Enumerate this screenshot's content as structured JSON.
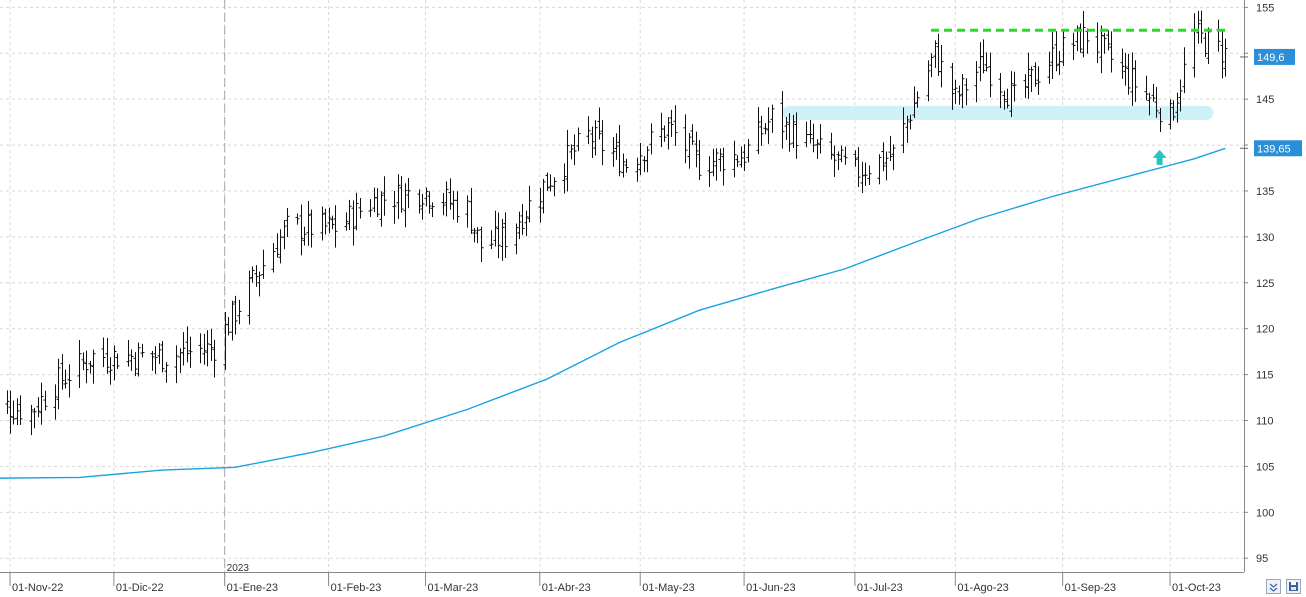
{
  "chart_data": {
    "type": "ohlc",
    "x_axis_labels": [
      {
        "date": "2022-11-01",
        "label": "01-Nov-22"
      },
      {
        "date": "2022-12-01",
        "label": "01-Dic-22"
      },
      {
        "date": "2023-01-02",
        "label": "01-Ene-23"
      },
      {
        "date": "2023-02-01",
        "label": "01-Feb-23"
      },
      {
        "date": "2023-03-01",
        "label": "01-Mar-23"
      },
      {
        "date": "2023-04-03",
        "label": "01-Abr-23"
      },
      {
        "date": "2023-05-02",
        "label": "01-May-23"
      },
      {
        "date": "2023-06-01",
        "label": "01-Jun-23"
      },
      {
        "date": "2023-07-03",
        "label": "01-Jul-23"
      },
      {
        "date": "2023-08-01",
        "label": "01-Ago-23"
      },
      {
        "date": "2023-09-01",
        "label": "01-Sep-23"
      },
      {
        "date": "2023-10-02",
        "label": "01-Oct-23"
      }
    ],
    "year_marker": {
      "date": "2023-01-02",
      "label": "2023"
    },
    "y_ticks": [
      95,
      100,
      105,
      110,
      115,
      120,
      125,
      130,
      135,
      140,
      145,
      150,
      155
    ],
    "ylim": [
      93.5,
      155.8
    ],
    "price_waypoints": [
      [
        "2022-10-25",
        112
      ],
      [
        "2022-11-07",
        111
      ],
      [
        "2022-11-14",
        114
      ],
      [
        "2022-11-25",
        117
      ],
      [
        "2022-12-16",
        117
      ],
      [
        "2022-12-30",
        118
      ],
      [
        "2023-01-13",
        127
      ],
      [
        "2023-01-20",
        131
      ],
      [
        "2023-02-03",
        131
      ],
      [
        "2023-02-14",
        134
      ],
      [
        "2023-02-28",
        135
      ],
      [
        "2023-03-13",
        133
      ],
      [
        "2023-03-17",
        129
      ],
      [
        "2023-03-24",
        130
      ],
      [
        "2023-04-05",
        136
      ],
      [
        "2023-04-17",
        141
      ],
      [
        "2023-04-28",
        138
      ],
      [
        "2023-05-10",
        142
      ],
      [
        "2023-05-19",
        138
      ],
      [
        "2023-06-01",
        139
      ],
      [
        "2023-06-09",
        143
      ],
      [
        "2023-06-20",
        140
      ],
      [
        "2023-07-03",
        137
      ],
      [
        "2023-07-14",
        139
      ],
      [
        "2023-07-26",
        150
      ],
      [
        "2023-08-01",
        145
      ],
      [
        "2023-08-09",
        149
      ],
      [
        "2023-08-18",
        145
      ],
      [
        "2023-08-30",
        150
      ],
      [
        "2023-09-08",
        152
      ],
      [
        "2023-09-21",
        147
      ],
      [
        "2023-10-02",
        143
      ],
      [
        "2023-10-09",
        152
      ],
      [
        "2023-10-18",
        150
      ]
    ],
    "moving_average": {
      "color": "#1aa3e0",
      "points": [
        [
          "2022-10-24",
          103.7
        ],
        [
          "2022-11-21",
          103.8
        ],
        [
          "2022-12-15",
          104.6
        ],
        [
          "2023-01-05",
          104.9
        ],
        [
          "2023-01-27",
          106.5
        ],
        [
          "2023-02-17",
          108.3
        ],
        [
          "2023-03-13",
          111.2
        ],
        [
          "2023-04-05",
          114.5
        ],
        [
          "2023-04-26",
          118.5
        ],
        [
          "2023-05-19",
          122.0
        ],
        [
          "2023-06-09",
          124.3
        ],
        [
          "2023-06-30",
          126.5
        ],
        [
          "2023-07-21",
          129.5
        ],
        [
          "2023-08-08",
          132.0
        ],
        [
          "2023-08-29",
          134.4
        ],
        [
          "2023-09-19",
          136.5
        ],
        [
          "2023-10-09",
          138.5
        ],
        [
          "2023-10-18",
          139.65
        ]
      ]
    },
    "resistance": {
      "value": 152.5,
      "from": "2023-07-25",
      "to": "2023-10-18",
      "color": "#22dd22"
    },
    "support_zone": {
      "value": 143.5,
      "from": "2023-06-12",
      "to": "2023-10-18",
      "color": "#c8f0f6"
    },
    "arrow": {
      "date": "2023-09-29",
      "value": 138.6,
      "color": "#22c4c4"
    },
    "last_price_label": {
      "value": 149.6,
      "label": "149,6"
    },
    "ma_label": {
      "value": 139.65,
      "label": "139,65"
    },
    "grid": true
  }
}
